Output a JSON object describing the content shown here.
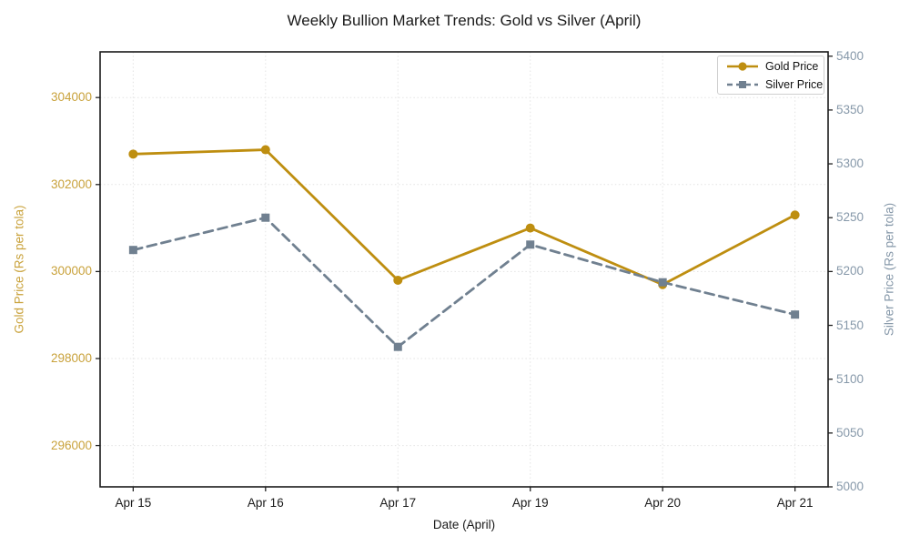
{
  "chart_data": {
    "type": "line",
    "title": "Weekly Bullion Market Trends: Gold vs Silver (April)",
    "xlabel": "Date (April)",
    "categories": [
      "Apr 15",
      "Apr 16",
      "Apr 17",
      "Apr 19",
      "Apr 20",
      "Apr 21"
    ],
    "series": [
      {
        "name": "Gold Price",
        "axis": "left",
        "color": "#BE8E10",
        "marker": "circle",
        "linestyle": "solid",
        "values": [
          302700,
          302800,
          299800,
          301000,
          299700,
          301300
        ]
      },
      {
        "name": "Silver Price",
        "axis": "right",
        "color": "#708090",
        "marker": "square",
        "linestyle": "dashed",
        "values": [
          5220,
          5250,
          5130,
          5225,
          5190,
          5160
        ]
      }
    ],
    "axes": {
      "left": {
        "label": "Gold Price (Rs per tola)",
        "ticks": [
          296000,
          298000,
          300000,
          302000,
          304000
        ],
        "range": [
          295050,
          305050
        ],
        "tick_color": "#C9A23B"
      },
      "right": {
        "label": "Silver Price (Rs per tola)",
        "ticks": [
          5000,
          5050,
          5100,
          5150,
          5200,
          5250,
          5300,
          5350,
          5400
        ],
        "range": [
          5000,
          5404
        ],
        "tick_color": "#8698A9"
      }
    },
    "legend": {
      "position": "upper right",
      "entries": [
        "Gold Price",
        "Silver Price"
      ]
    },
    "grid": {
      "style": "dotted",
      "color": "#e3e3e3",
      "horizontal": "left-axis-ticks",
      "vertical": "x-ticks"
    },
    "spine_color": "#1a1a1a",
    "tick_mark_color": "#222222"
  }
}
